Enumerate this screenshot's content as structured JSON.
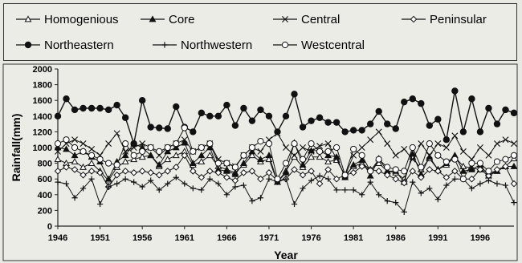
{
  "chart_data": {
    "type": "line",
    "title": "",
    "xlabel": "Year",
    "ylabel": "Rainfall(mm)",
    "xlim": [
      1946,
      2000
    ],
    "ylim": [
      0,
      2000
    ],
    "x_ticks": [
      1946,
      1951,
      1956,
      1961,
      1966,
      1971,
      1976,
      1981,
      1986,
      1991,
      1996
    ],
    "y_ticks": [
      0,
      200,
      400,
      600,
      800,
      1000,
      1200,
      1400,
      1600,
      1800,
      2000
    ],
    "grid": false,
    "legend_position": "top",
    "x": [
      1946,
      1947,
      1948,
      1949,
      1950,
      1951,
      1952,
      1953,
      1954,
      1955,
      1956,
      1957,
      1958,
      1959,
      1960,
      1961,
      1962,
      1963,
      1964,
      1965,
      1966,
      1967,
      1968,
      1969,
      1970,
      1971,
      1972,
      1973,
      1974,
      1975,
      1976,
      1977,
      1978,
      1979,
      1980,
      1981,
      1982,
      1983,
      1984,
      1985,
      1986,
      1987,
      1988,
      1989,
      1990,
      1991,
      1992,
      1993,
      1994,
      1995,
      1996,
      1997,
      1998,
      1999,
      2000
    ],
    "series": [
      {
        "name": "Homogenious",
        "marker": "triangle-open",
        "values": [
          850,
          800,
          820,
          750,
          800,
          700,
          580,
          750,
          820,
          850,
          880,
          900,
          760,
          850,
          900,
          950,
          780,
          820,
          900,
          760,
          720,
          680,
          780,
          900,
          820,
          850,
          560,
          700,
          880,
          750,
          880,
          880,
          820,
          840,
          650,
          760,
          800,
          720,
          800,
          700,
          680,
          600,
          880,
          720,
          860,
          720,
          780,
          880,
          760,
          740,
          720,
          680,
          700,
          760,
          860
        ]
      },
      {
        "name": "Core",
        "marker": "triangle-filled",
        "values": [
          1000,
          980,
          900,
          950,
          880,
          820,
          600,
          820,
          900,
          1050,
          1000,
          900,
          780,
          950,
          1000,
          1060,
          800,
          900,
          1000,
          720,
          700,
          660,
          800,
          950,
          850,
          900,
          560,
          680,
          1060,
          780,
          960,
          960,
          900,
          880,
          620,
          780,
          840,
          640,
          860,
          700,
          700,
          560,
          920,
          660,
          880,
          720,
          800,
          900,
          700,
          720,
          780,
          640,
          700,
          760,
          760
        ]
      },
      {
        "name": "Central",
        "marker": "x",
        "values": [
          950,
          1050,
          1100,
          1050,
          980,
          900,
          1050,
          1180,
          950,
          1000,
          1050,
          1000,
          900,
          1000,
          1050,
          1100,
          950,
          1000,
          1050,
          850,
          800,
          760,
          900,
          1000,
          950,
          1100,
          1180,
          1000,
          900,
          1000,
          950,
          1020,
          1050,
          860,
          640,
          900,
          1000,
          1100,
          1200,
          1050,
          900,
          980,
          850,
          1050,
          900,
          1050,
          1000,
          1150,
          950,
          850,
          1000,
          900,
          1050,
          1100,
          1050
        ]
      },
      {
        "name": "Peninsular",
        "marker": "diamond-open",
        "values": [
          700,
          750,
          720,
          650,
          700,
          680,
          500,
          650,
          700,
          680,
          700,
          680,
          650,
          700,
          750,
          900,
          700,
          620,
          700,
          680,
          620,
          580,
          680,
          700,
          600,
          680,
          580,
          600,
          720,
          650,
          700,
          540,
          720,
          600,
          650,
          680,
          760,
          720,
          700,
          650,
          600,
          550,
          700,
          620,
          720,
          700,
          620,
          700,
          600,
          600,
          720,
          640,
          720,
          760,
          540
        ]
      },
      {
        "name": "Northeastern",
        "marker": "circle-filled",
        "values": [
          1400,
          1620,
          1480,
          1500,
          1500,
          1500,
          1480,
          1540,
          1380,
          1050,
          1600,
          1260,
          1250,
          1240,
          1520,
          1260,
          1200,
          1440,
          1400,
          1400,
          1540,
          1280,
          1500,
          1340,
          1480,
          1400,
          1200,
          1400,
          1680,
          1260,
          1340,
          1380,
          1320,
          1320,
          1200,
          1220,
          1220,
          1300,
          1460,
          1300,
          1240,
          1580,
          1620,
          1560,
          1280,
          1360,
          1100,
          1720,
          1200,
          1620,
          1200,
          1500,
          1300,
          1480,
          1440
        ]
      },
      {
        "name": "Northwestern",
        "marker": "plus",
        "values": [
          560,
          540,
          360,
          480,
          600,
          280,
          500,
          540,
          600,
          560,
          500,
          580,
          460,
          540,
          620,
          540,
          480,
          460,
          600,
          540,
          400,
          500,
          520,
          320,
          360,
          600,
          560,
          600,
          280,
          480,
          580,
          640,
          600,
          460,
          460,
          460,
          400,
          560,
          400,
          320,
          300,
          180,
          560,
          420,
          480,
          340,
          520,
          600,
          600,
          480,
          540,
          580,
          540,
          520,
          300
        ]
      },
      {
        "name": "Westcentral",
        "marker": "circle-open",
        "values": [
          1050,
          1100,
          1000,
          950,
          900,
          850,
          800,
          780,
          1050,
          900,
          950,
          1000,
          950,
          1000,
          1050,
          1250,
          950,
          1000,
          1050,
          800,
          800,
          750,
          900,
          1000,
          1080,
          1050,
          600,
          800,
          1050,
          850,
          1050,
          950,
          950,
          1000,
          650,
          980,
          900,
          700,
          850,
          750,
          720,
          700,
          1000,
          750,
          1050,
          900,
          820,
          850,
          600,
          800,
          800,
          700,
          820,
          850,
          900
        ]
      }
    ]
  }
}
